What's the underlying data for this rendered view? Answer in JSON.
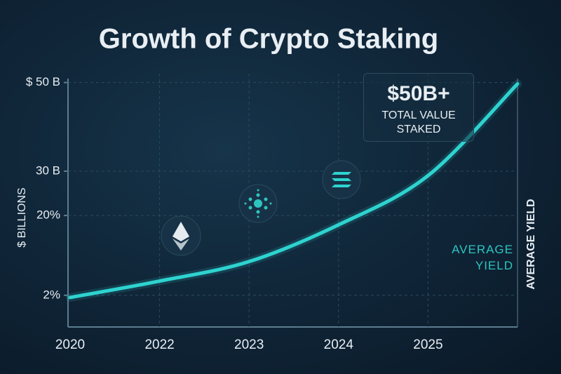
{
  "chart_data": {
    "type": "line",
    "title": "Growth of Crypto Staking",
    "categories": [
      "2020",
      "2022",
      "2023",
      "2024",
      "2025",
      null
    ],
    "series": [
      {
        "name": null,
        "color": "#2ed3cf",
        "values": [
          1.5,
          5.2,
          9.6,
          17.9,
          29,
          49.7
        ]
      }
    ],
    "ylim": [
      -5,
      52
    ],
    "yticks": [
      {
        "value": 2,
        "label": "2%"
      },
      {
        "value": 20,
        "label": "20%"
      },
      {
        "value": 30,
        "label": "30 B"
      },
      {
        "value": 50,
        "label": "$ 50 B"
      }
    ],
    "ylabel": "$ BILLIONS",
    "y2label": "AVERAGE YIELD",
    "grid": true,
    "annotations": [
      {
        "title": "$50B+",
        "text": "TOTAL VALUE STAKED"
      },
      {
        "text": "AVERAGE YIELD"
      }
    ]
  }
}
